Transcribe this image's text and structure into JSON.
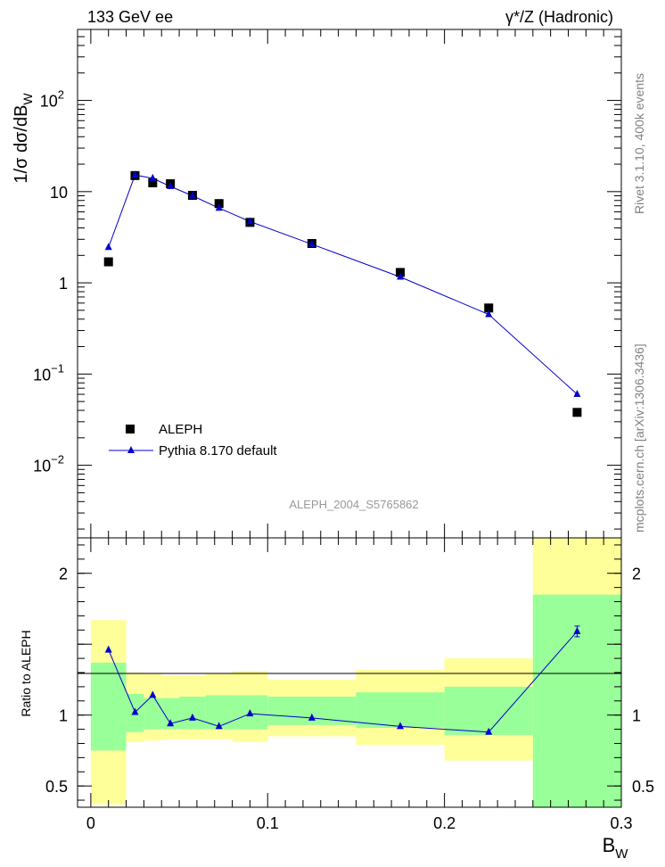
{
  "header": {
    "left": "133 GeV ee",
    "right": "γ*/Z (Hadronic)"
  },
  "side_labels": {
    "rivet": "Rivet 3.1.10,  400k events",
    "mcplots": "mcplots.cern.ch [arXiv:1306.3436]"
  },
  "watermark": "ALEPH_2004_S5765862",
  "colors": {
    "data": "#000000",
    "mc": "#0000cc",
    "band_inner": "#99ff99",
    "band_outer": "#ffff99"
  },
  "chart_data": [
    {
      "type": "scatter",
      "panel": "main",
      "ylabel": "1/σ dσ/dB_W",
      "yscale": "log",
      "xlim": [
        -0.0075,
        0.3
      ],
      "ylim": [
        0.0016,
        600
      ],
      "y_ticks": [
        {
          "value": 0.01,
          "label": "10",
          "exp": "−2"
        },
        {
          "value": 0.1,
          "label": "10",
          "exp": "−1"
        },
        {
          "value": 1,
          "label": "1",
          "exp": ""
        },
        {
          "value": 10,
          "label": "10",
          "exp": ""
        },
        {
          "value": 100,
          "label": "10",
          "exp": "2"
        }
      ],
      "legend_position": "lower-left",
      "series": [
        {
          "name": "ALEPH",
          "marker": "square",
          "x": [
            0.01,
            0.025,
            0.035,
            0.045,
            0.0575,
            0.0725,
            0.09,
            0.125,
            0.175,
            0.225,
            0.275
          ],
          "values": [
            1.7,
            15.0,
            12.5,
            12.2,
            9.1,
            7.4,
            4.6,
            2.7,
            1.3,
            0.53,
            0.038
          ]
        },
        {
          "name": "Pythia 8.170 default",
          "marker": "triangle",
          "x": [
            0.01,
            0.025,
            0.035,
            0.045,
            0.0575,
            0.0725,
            0.09,
            0.125,
            0.175,
            0.225,
            0.275
          ],
          "values": [
            2.45,
            15.2,
            14.0,
            11.4,
            9.0,
            6.6,
            4.7,
            2.65,
            1.16,
            0.45,
            0.06
          ]
        }
      ]
    },
    {
      "type": "line",
      "panel": "ratio",
      "xlabel": "B_W",
      "ylabel": "Ratio to ALEPH",
      "xlim": [
        -0.0075,
        0.3
      ],
      "ylim": [
        0.35,
        2.25
      ],
      "x_ticks": [
        "0",
        "0.1",
        "0.2",
        "0.3"
      ],
      "y_ticks": [
        "0.5",
        "1",
        "2"
      ],
      "reference_line": 1,
      "uncertainty_bands": [
        {
          "x0": 0.0,
          "x1": 0.02,
          "inner": [
            0.75,
            1.37
          ],
          "outer": [
            0.37,
            1.67
          ]
        },
        {
          "x0": 0.02,
          "x1": 0.03,
          "inner": [
            0.88,
            1.15
          ],
          "outer": [
            0.81,
            1.3
          ]
        },
        {
          "x0": 0.03,
          "x1": 0.04,
          "inner": [
            0.9,
            1.12
          ],
          "outer": [
            0.82,
            1.29
          ]
        },
        {
          "x0": 0.04,
          "x1": 0.05,
          "inner": [
            0.9,
            1.12
          ],
          "outer": [
            0.83,
            1.28
          ]
        },
        {
          "x0": 0.05,
          "x1": 0.065,
          "inner": [
            0.9,
            1.13
          ],
          "outer": [
            0.83,
            1.28
          ]
        },
        {
          "x0": 0.065,
          "x1": 0.08,
          "inner": [
            0.9,
            1.14
          ],
          "outer": [
            0.83,
            1.29
          ]
        },
        {
          "x0": 0.08,
          "x1": 0.1,
          "inner": [
            0.9,
            1.14
          ],
          "outer": [
            0.81,
            1.31
          ]
        },
        {
          "x0": 0.1,
          "x1": 0.15,
          "inner": [
            0.93,
            1.13
          ],
          "outer": [
            0.85,
            1.25
          ]
        },
        {
          "x0": 0.15,
          "x1": 0.2,
          "inner": [
            0.91,
            1.16
          ],
          "outer": [
            0.79,
            1.32
          ]
        },
        {
          "x0": 0.2,
          "x1": 0.25,
          "inner": [
            0.86,
            1.2
          ],
          "outer": [
            0.68,
            1.4
          ]
        },
        {
          "x0": 0.25,
          "x1": 0.3,
          "inner": [
            0.35,
            1.85
          ],
          "outer": [
            0.35,
            2.25
          ]
        }
      ],
      "series": [
        {
          "name": "Pythia 8.170 default",
          "x": [
            0.01,
            0.025,
            0.035,
            0.045,
            0.0575,
            0.0725,
            0.09,
            0.125,
            0.175,
            0.225,
            0.275
          ],
          "values": [
            1.46,
            1.02,
            1.14,
            0.94,
            0.98,
            0.92,
            1.01,
            0.98,
            0.92,
            0.88,
            1.59
          ]
        }
      ]
    }
  ]
}
